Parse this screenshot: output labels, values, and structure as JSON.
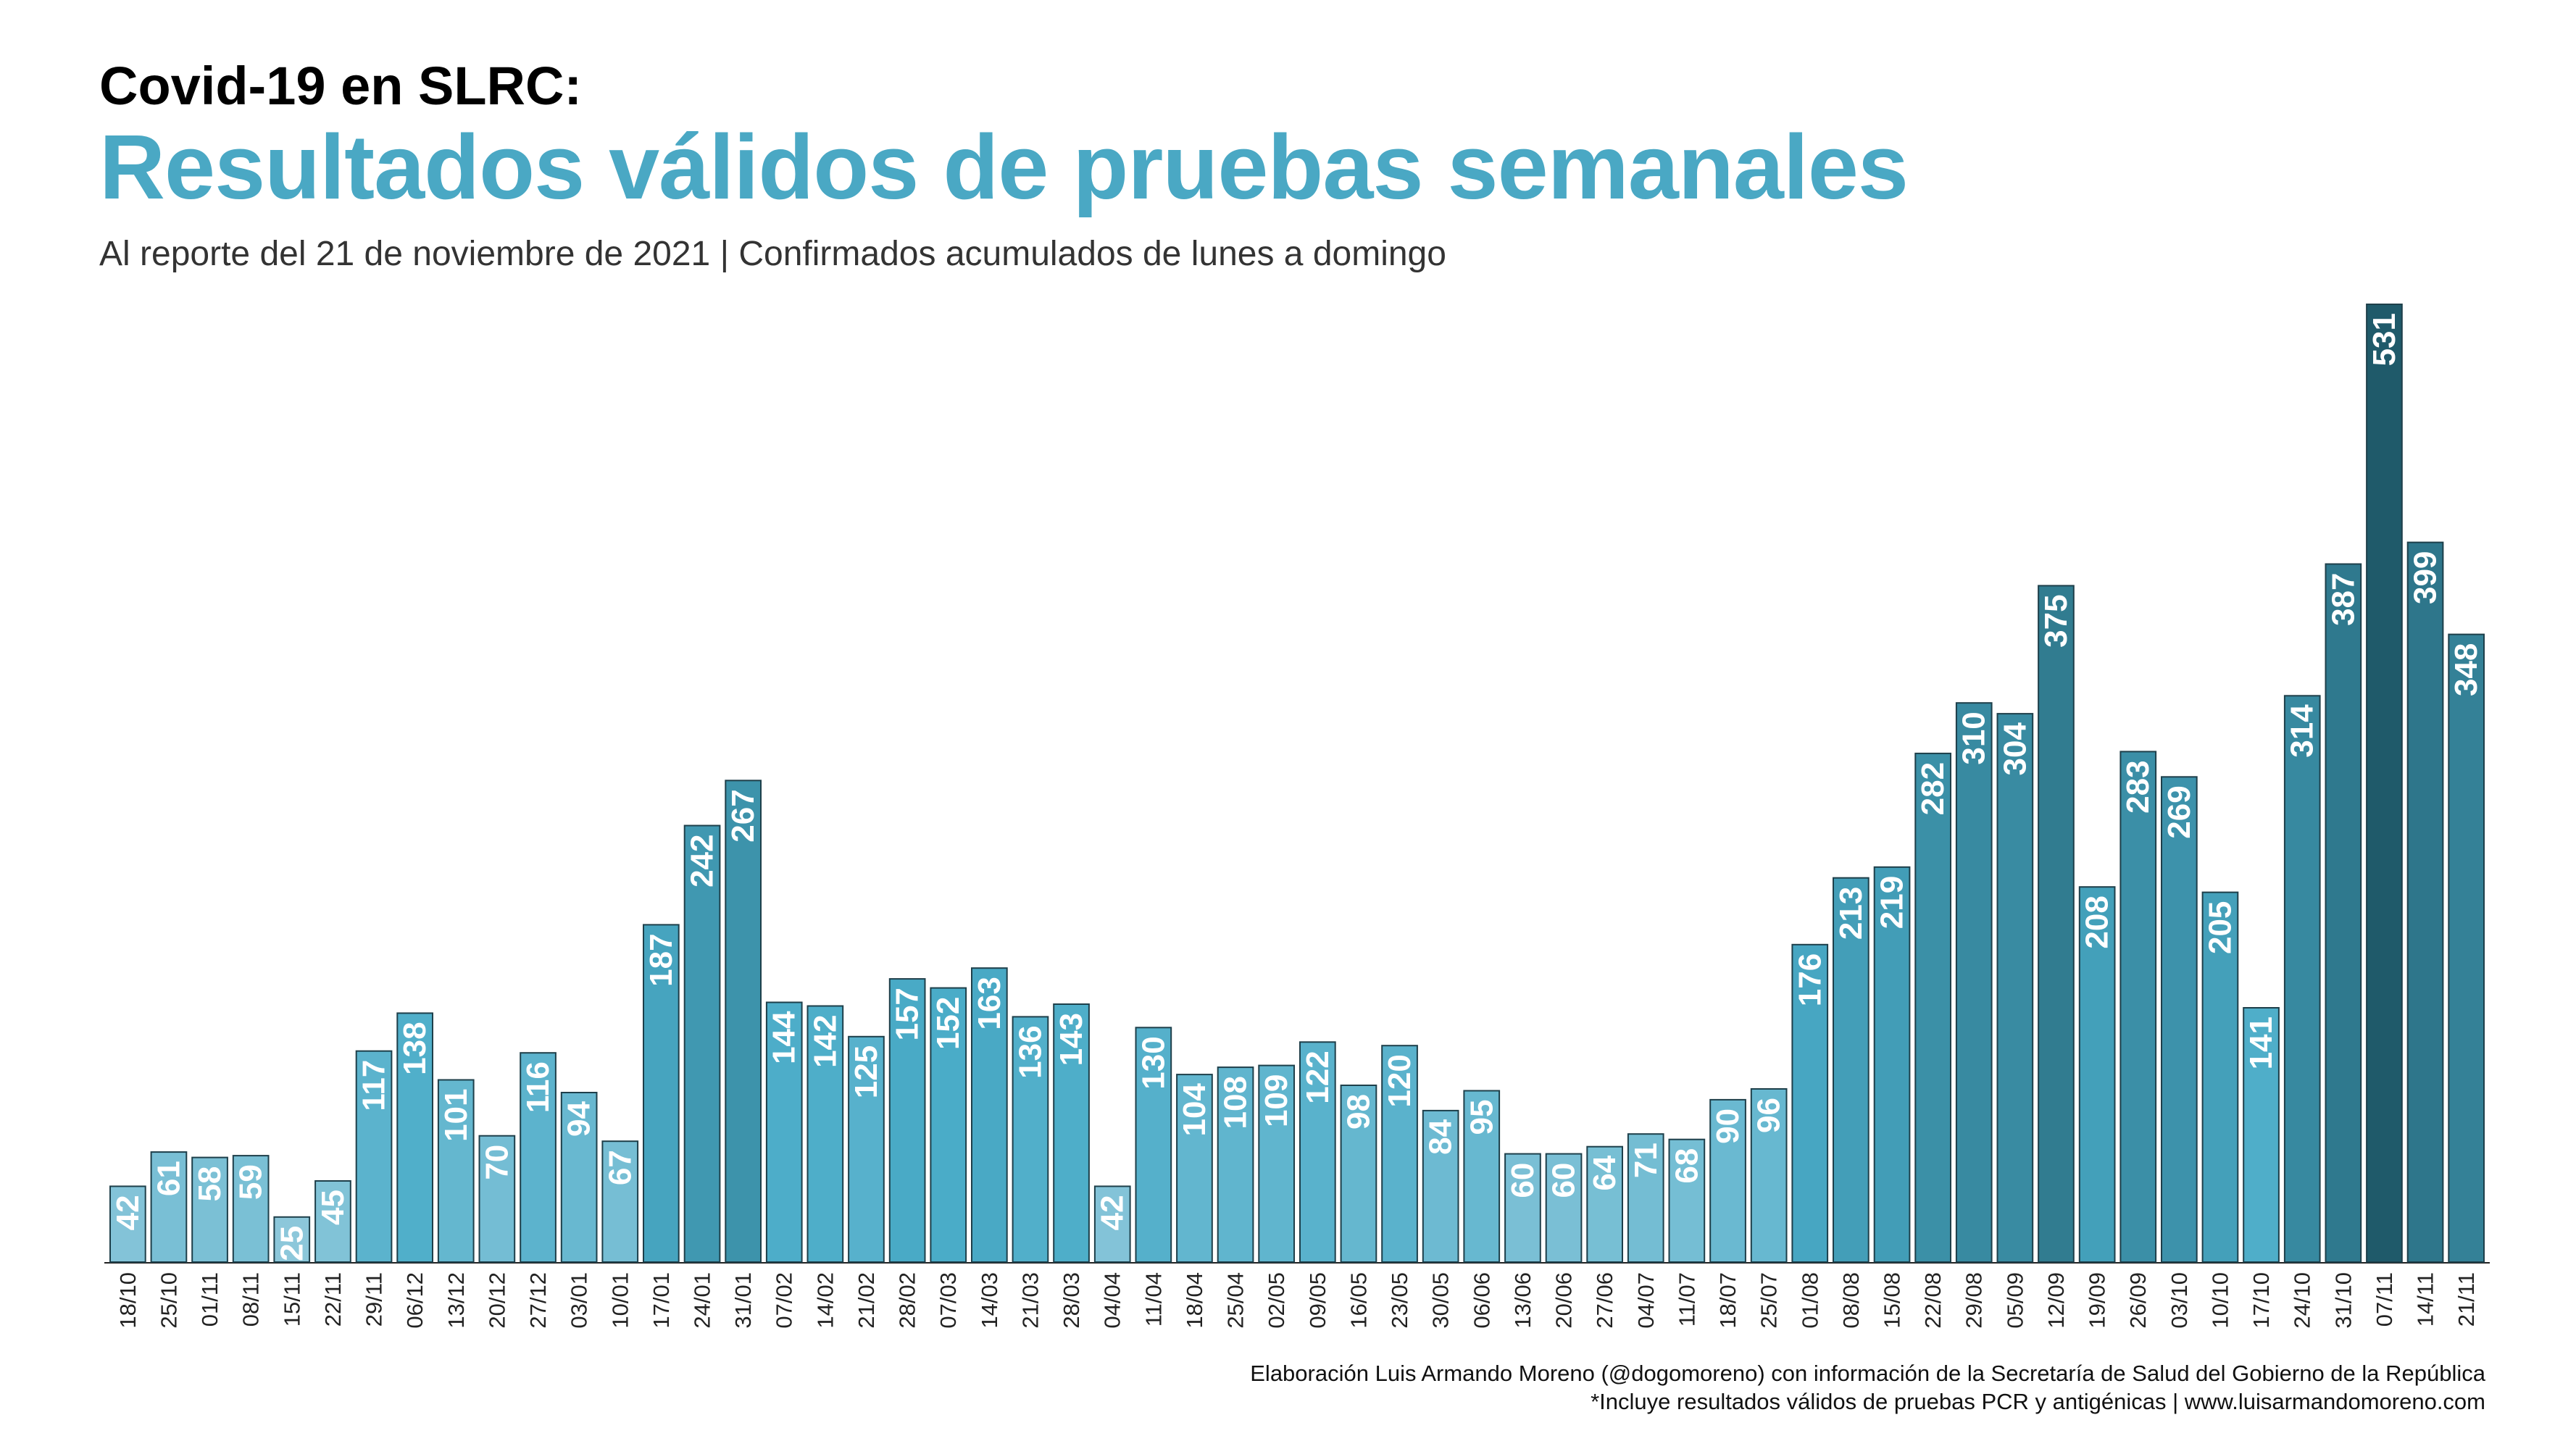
{
  "header": {
    "pre_title": "Covid-19 en SLRC:",
    "title": "Resultados válidos de pruebas semanales",
    "subtitle": "Al reporte del 21 de noviembre de 2021 | Confirmados acumulados de lunes a domingo"
  },
  "footer": {
    "credit": "Elaboración Luis Armando Moreno (@dogomoreno) con información de la Secretaría de Salud del Gobierno de la República",
    "note": "*Incluye resultados válidos de pruebas PCR y antigénicas | www.luisarmandomoreno.com"
  },
  "colors": {
    "title": "#4aa8c4",
    "bar_light": "#8cc7da",
    "bar_mid": "#4aacc8",
    "bar_dark": "#1f5a6a",
    "bar_border": "#1e3f4a",
    "label": "#ffffff",
    "axis": "#222222"
  },
  "chart_data": {
    "type": "bar",
    "title": "Resultados válidos de pruebas semanales",
    "categories": [
      "18/10",
      "25/10",
      "01/11",
      "08/11",
      "15/11",
      "22/11",
      "29/11",
      "06/12",
      "13/12",
      "20/12",
      "27/12",
      "03/01",
      "10/01",
      "17/01",
      "24/01",
      "31/01",
      "07/02",
      "14/02",
      "21/02",
      "28/02",
      "07/03",
      "14/03",
      "21/03",
      "28/03",
      "04/04",
      "11/04",
      "18/04",
      "25/04",
      "02/05",
      "09/05",
      "16/05",
      "23/05",
      "30/05",
      "06/06",
      "13/06",
      "20/06",
      "27/06",
      "04/07",
      "11/07",
      "18/07",
      "25/07",
      "01/08",
      "08/08",
      "15/08",
      "22/08",
      "29/08",
      "05/09",
      "12/09",
      "19/09",
      "26/09",
      "03/10",
      "10/10",
      "17/10",
      "24/10",
      "31/10",
      "07/11",
      "14/11",
      "21/11"
    ],
    "values": [
      42,
      61,
      58,
      59,
      25,
      45,
      117,
      138,
      101,
      70,
      116,
      94,
      67,
      187,
      242,
      267,
      144,
      142,
      125,
      157,
      152,
      163,
      136,
      143,
      42,
      130,
      104,
      108,
      109,
      122,
      98,
      120,
      84,
      95,
      60,
      60,
      64,
      71,
      68,
      90,
      96,
      176,
      213,
      219,
      282,
      310,
      304,
      375,
      208,
      283,
      269,
      205,
      141,
      314,
      387,
      531,
      399,
      348
    ],
    "ylim": [
      0,
      531
    ],
    "grid": false,
    "legend": "none",
    "data_labels": "inside-top-rotated"
  }
}
